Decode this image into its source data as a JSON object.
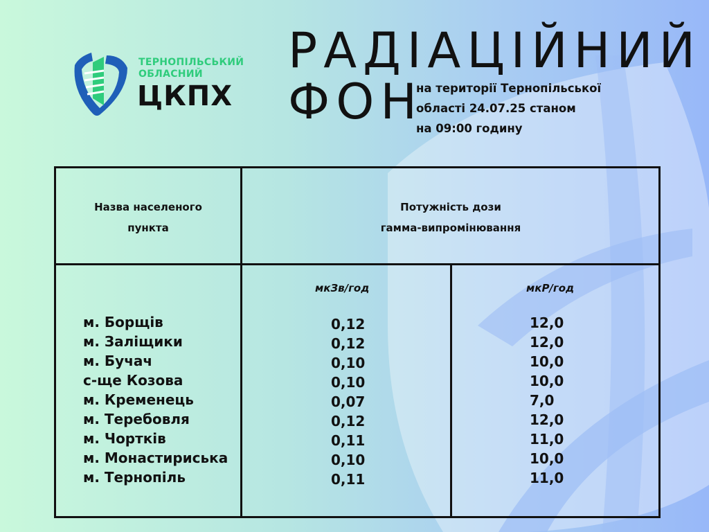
{
  "logo": {
    "line1": "ТЕРНОПІЛЬСЬКИЙ",
    "line2": "ОБЛАСНИЙ",
    "line3": "ЦКПХ"
  },
  "title": {
    "line1": "РАДІАЦІЙНИЙ",
    "line2": "ФОН"
  },
  "subtitle": [
    "на території Тернопільської",
    "області 24.07.25 станом",
    "на 09:00 годину"
  ],
  "colors": {
    "logo_blue": "#1f5fb8",
    "logo_green": "#2fcc7c",
    "text": "#111111"
  },
  "table": {
    "header_name": [
      "Назва населеного",
      "пункта"
    ],
    "header_dose": [
      "Потужність дози",
      "гамма-випромінювання"
    ],
    "unit1": "мкЗв/год",
    "unit2": "мкР/год",
    "rows": [
      {
        "place": "м. Борщів",
        "usv": "0,12",
        "ur": "12,0"
      },
      {
        "place": "м. Заліщики",
        "usv": "0,12",
        "ur": "12,0"
      },
      {
        "place": "м. Бучач",
        "usv": "0,10",
        "ur": "10,0"
      },
      {
        "place": "с-ще Козова",
        "usv": "0,10",
        "ur": "10,0"
      },
      {
        "place": "м. Кременець",
        "usv": "0,07",
        "ur": "7,0"
      },
      {
        "place": "м. Теребовля",
        "usv": "0,12",
        "ur": "12,0"
      },
      {
        "place": "м. Чортків",
        "usv": "0,11",
        "ur": "11,0"
      },
      {
        "place": "м. Монастириська",
        "usv": "0,10",
        "ur": "10,0"
      },
      {
        "place": "м. Тернопіль",
        "usv": "0,11",
        "ur": "11,0"
      }
    ]
  }
}
